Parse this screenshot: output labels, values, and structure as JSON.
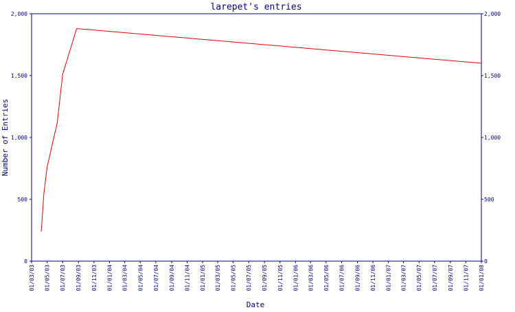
{
  "chart_data": {
    "type": "line",
    "title": "larepet's entries",
    "xlabel": "Date",
    "ylabel": "Number of Entries",
    "ylim": [
      0,
      2000
    ],
    "xlim": [
      "2003-03-01",
      "2008-01-01"
    ],
    "y_ticks": [
      {
        "value": 0,
        "label": "0"
      },
      {
        "value": 500,
        "label": "500"
      },
      {
        "value": 1000,
        "label": "1,000"
      },
      {
        "value": 1500,
        "label": "1,500"
      },
      {
        "value": 2000,
        "label": "2,000"
      }
    ],
    "x_ticks": [
      {
        "date": "2003-03-01",
        "label": "01/03/03"
      },
      {
        "date": "2003-05-01",
        "label": "01/05/03"
      },
      {
        "date": "2003-07-01",
        "label": "01/07/03"
      },
      {
        "date": "2003-09-01",
        "label": "01/09/03"
      },
      {
        "date": "2003-11-01",
        "label": "01/11/03"
      },
      {
        "date": "2004-01-01",
        "label": "01/01/04"
      },
      {
        "date": "2004-03-01",
        "label": "01/03/04"
      },
      {
        "date": "2004-05-01",
        "label": "01/05/04"
      },
      {
        "date": "2004-07-01",
        "label": "01/07/04"
      },
      {
        "date": "2004-09-01",
        "label": "01/09/04"
      },
      {
        "date": "2004-11-01",
        "label": "01/11/04"
      },
      {
        "date": "2005-01-01",
        "label": "01/01/05"
      },
      {
        "date": "2005-03-01",
        "label": "01/03/05"
      },
      {
        "date": "2005-05-01",
        "label": "01/05/05"
      },
      {
        "date": "2005-07-01",
        "label": "01/07/05"
      },
      {
        "date": "2005-09-01",
        "label": "01/09/05"
      },
      {
        "date": "2005-11-01",
        "label": "01/11/05"
      },
      {
        "date": "2006-01-01",
        "label": "01/01/06"
      },
      {
        "date": "2006-03-01",
        "label": "01/03/06"
      },
      {
        "date": "2006-05-01",
        "label": "01/05/06"
      },
      {
        "date": "2006-07-01",
        "label": "01/07/06"
      },
      {
        "date": "2006-09-01",
        "label": "01/09/06"
      },
      {
        "date": "2006-11-01",
        "label": "01/11/06"
      },
      {
        "date": "2007-01-01",
        "label": "01/01/07"
      },
      {
        "date": "2007-03-01",
        "label": "01/03/07"
      },
      {
        "date": "2007-05-01",
        "label": "01/05/07"
      },
      {
        "date": "2007-07-01",
        "label": "01/07/07"
      },
      {
        "date": "2007-09-01",
        "label": "01/09/07"
      },
      {
        "date": "2007-11-01",
        "label": "01/11/07"
      },
      {
        "date": "2008-01-01",
        "label": "01/01/08"
      }
    ],
    "series": [
      {
        "color": "#dd0000",
        "points": [
          {
            "x": "2003-04-08",
            "y": 240
          },
          {
            "x": "2003-04-18",
            "y": 540
          },
          {
            "x": "2003-05-01",
            "y": 760
          },
          {
            "x": "2003-06-10",
            "y": 1120
          },
          {
            "x": "2003-07-01",
            "y": 1510
          },
          {
            "x": "2003-08-25",
            "y": 1880
          },
          {
            "x": "2008-01-01",
            "y": 1600
          }
        ]
      }
    ],
    "colors": {
      "axis": "#000080",
      "text": "#000080",
      "line": "#dd0000",
      "background": "#ffffff"
    }
  }
}
